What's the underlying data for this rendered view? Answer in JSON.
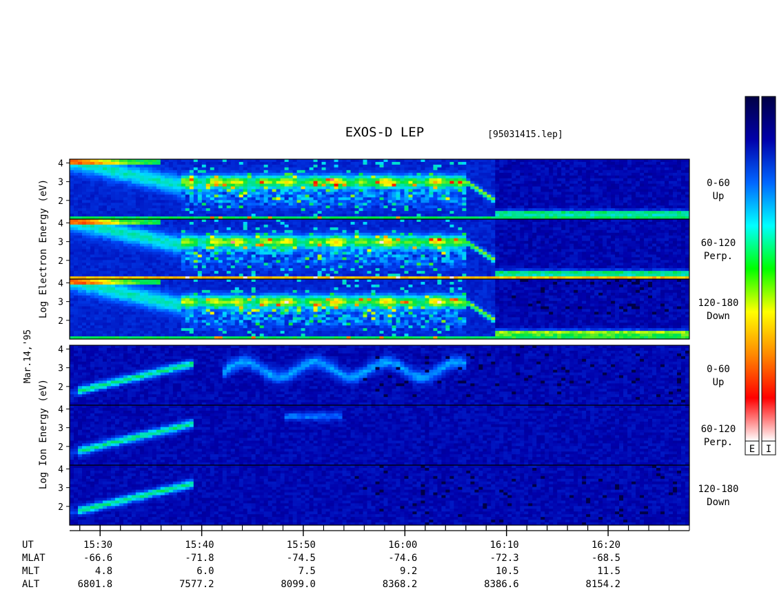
{
  "chart_data": {
    "type": "heatmap",
    "title": "EXOS-D LEP",
    "file_label": "[95031415.lep]",
    "date_label": "Mar.14,'95",
    "time_range": [
      "15:27",
      "16:28"
    ],
    "y_range_log_eV": [
      1,
      4.2
    ],
    "y_ticks": [
      "4",
      "3",
      "2"
    ],
    "groups": [
      {
        "id": "electron",
        "ylabel": "Log  Electron  Energy (eV)",
        "panels": [
          {
            "angle": "0-60",
            "direction": "Up"
          },
          {
            "angle": "60-120",
            "direction": "Perp."
          },
          {
            "angle": "120-180",
            "direction": "Down"
          }
        ]
      },
      {
        "id": "ion",
        "ylabel": "Log  Ion  Energy (eV)",
        "panels": [
          {
            "angle": "0-60",
            "direction": "Up"
          },
          {
            "angle": "60-120",
            "direction": "Perp."
          },
          {
            "angle": "120-180",
            "direction": "Down"
          }
        ]
      }
    ],
    "x_ticks": [
      "15:30",
      "15:40",
      "15:50",
      "16:00",
      "16:10",
      "16:20"
    ],
    "ephemeris": [
      {
        "label": "UT",
        "values": [
          "15:30",
          "15:40",
          "15:50",
          "16:00",
          "16:10",
          "16:20"
        ]
      },
      {
        "label": "MLAT",
        "values": [
          "-66.6",
          "-71.8",
          "-74.5",
          "-74.6",
          "-72.3",
          "-68.5"
        ]
      },
      {
        "label": "MLT",
        "values": [
          "4.8",
          "6.0",
          "7.5",
          "9.2",
          "10.5",
          "11.5"
        ]
      },
      {
        "label": "ALT",
        "values": [
          "6801.8",
          "7577.2",
          "8099.0",
          "8368.2",
          "8386.6",
          "8154.2"
        ]
      }
    ],
    "colorbars": [
      {
        "label": "E"
      },
      {
        "label": "I"
      }
    ],
    "colormap": [
      "#ffffff",
      "#ff0000",
      "#ff8800",
      "#ffff00",
      "#00ff00",
      "#00ffff",
      "#0066ff",
      "#0000aa",
      "#000044"
    ]
  }
}
